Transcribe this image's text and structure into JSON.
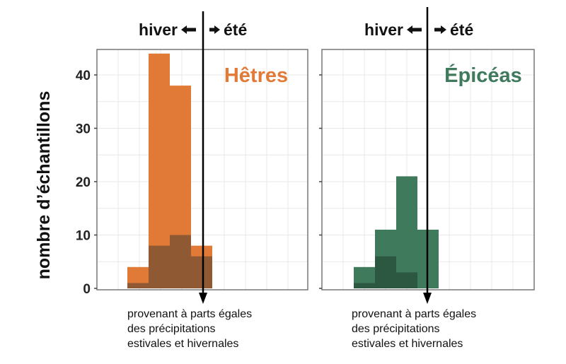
{
  "chart_data": {
    "type": "bar",
    "ylabel": "nombre d’échantillons",
    "ylim": [
      0,
      40
    ],
    "yticks": [
      0,
      10,
      20,
      30,
      40
    ],
    "grid": true,
    "annotation": {
      "left_label": "hiver",
      "right_label": "été",
      "caption_lines": [
        "provenant à parts égales",
        "des précipitations",
        "estivales et hivernales"
      ]
    },
    "panels": [
      {
        "title": "Hêtres",
        "color": "#e07a36",
        "overlap_color": "#8f5a33",
        "series": [
          {
            "values": [
              4,
              44,
              38,
              8
            ]
          },
          {
            "values": [
              1,
              8,
              10,
              6
            ]
          }
        ]
      },
      {
        "title": "Épicéas",
        "color": "#3f7a5c",
        "overlap_color": "#2c5842",
        "series": [
          {
            "values": [
              4,
              11,
              21,
              11
            ]
          },
          {
            "values": [
              1,
              6,
              3,
              0
            ]
          }
        ]
      }
    ]
  }
}
